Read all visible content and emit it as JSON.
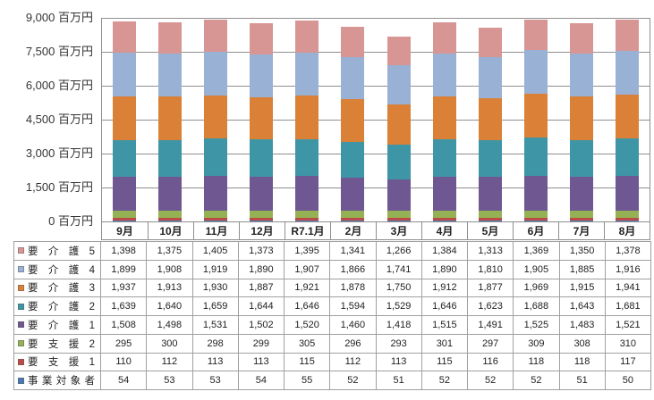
{
  "y_axis": {
    "unit": "百万円",
    "ticks": [
      "9,000 百万円",
      "7,500 百万円",
      "6,000 百万円",
      "4,500 百万円",
      "3,000 百万円",
      "1,500 百万円",
      "0 百万円"
    ]
  },
  "chart_data": {
    "type": "bar",
    "stacked": true,
    "grid": true,
    "legend_position": "table-left",
    "ylim": [
      0,
      9000
    ],
    "ylabel_unit": "百万円",
    "categories": [
      "9月",
      "10月",
      "11月",
      "12月",
      "R7.1月",
      "2月",
      "3月",
      "4月",
      "5月",
      "6月",
      "7月",
      "8月"
    ],
    "series": [
      {
        "name": "要 介 護 5",
        "color": "#d79694",
        "values": [
          "1,398",
          "1,375",
          "1,405",
          "1,373",
          "1,395",
          "1,341",
          "1,266",
          "1,384",
          "1,313",
          "1,369",
          "1,350",
          "1,378"
        ]
      },
      {
        "name": "要 介 護 4",
        "color": "#98b1d4",
        "values": [
          "1,899",
          "1,908",
          "1,919",
          "1,890",
          "1,907",
          "1,866",
          "1,741",
          "1,890",
          "1,810",
          "1,905",
          "1,885",
          "1,916"
        ]
      },
      {
        "name": "要 介 護 3",
        "color": "#da8137",
        "values": [
          "1,937",
          "1,913",
          "1,930",
          "1,887",
          "1,921",
          "1,878",
          "1,750",
          "1,912",
          "1,877",
          "1,969",
          "1,915",
          "1,941"
        ]
      },
      {
        "name": "要 介 護 2",
        "color": "#3e95a6",
        "values": [
          "1,639",
          "1,640",
          "1,659",
          "1,644",
          "1,646",
          "1,594",
          "1,529",
          "1,646",
          "1,623",
          "1,688",
          "1,643",
          "1,681"
        ]
      },
      {
        "name": "要 介 護 1",
        "color": "#6f5792",
        "values": [
          "1,508",
          "1,498",
          "1,531",
          "1,502",
          "1,520",
          "1,460",
          "1,418",
          "1,515",
          "1,491",
          "1,525",
          "1,483",
          "1,521"
        ]
      },
      {
        "name": "要 支 援 2",
        "color": "#94b253",
        "values": [
          "295",
          "300",
          "298",
          "299",
          "305",
          "296",
          "293",
          "301",
          "297",
          "309",
          "308",
          "310"
        ]
      },
      {
        "name": "要 支 援 1",
        "color": "#bc4b47",
        "values": [
          "110",
          "112",
          "113",
          "113",
          "115",
          "112",
          "113",
          "115",
          "116",
          "118",
          "118",
          "117"
        ]
      },
      {
        "name": "事業対象者",
        "color": "#4b79b5",
        "values": [
          "54",
          "53",
          "53",
          "54",
          "55",
          "52",
          "51",
          "52",
          "52",
          "52",
          "51",
          "50"
        ]
      }
    ]
  },
  "colors": {
    "gridline": "#8f8f8f",
    "table_border": "#a0a0a0",
    "text": "#262626"
  }
}
